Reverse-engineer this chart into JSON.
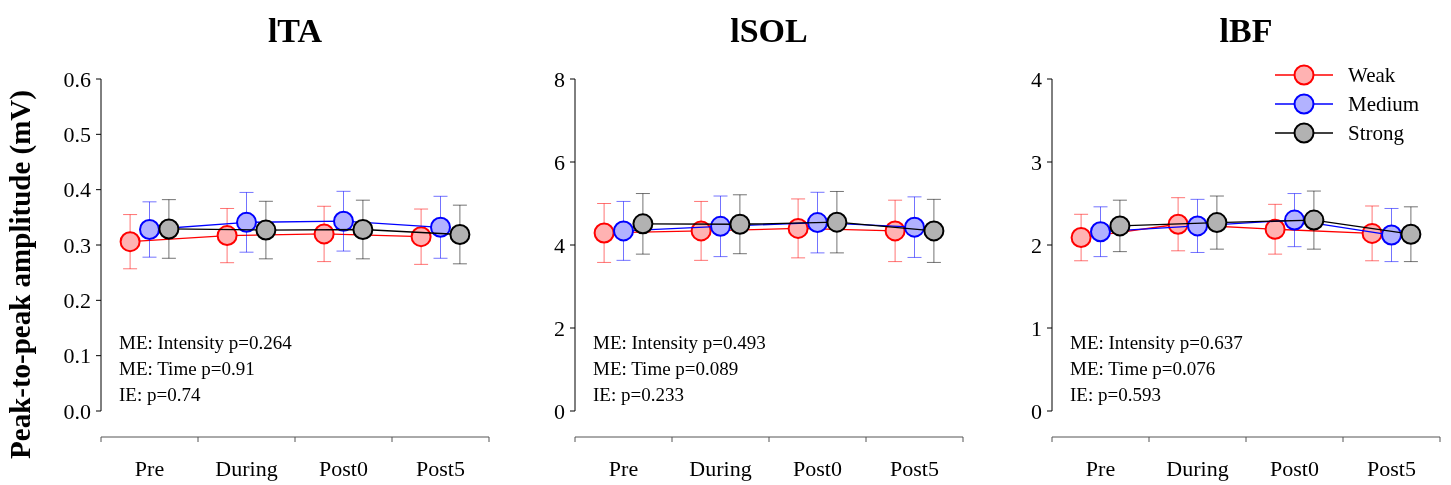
{
  "chart_data": [
    {
      "type": "line",
      "title": "lTA",
      "ylabel": "Peak-to-peak amplitude (mV)",
      "categories": [
        "Pre",
        "During",
        "Post0",
        "Post5"
      ],
      "ylim": [
        0,
        0.6
      ],
      "yticks": [
        {
          "value": 0,
          "label": "0.0"
        },
        0.1,
        0.2,
        0.3,
        0.4,
        0.5,
        0.6
      ],
      "marker": "circle",
      "series": [
        {
          "color": "#ff0000",
          "values": [
            0.306,
            0.317,
            0.32,
            0.315
          ],
          "errors": [
            0.049,
            0.049,
            0.05,
            0.05
          ]
        },
        {
          "color": "#0000ff",
          "values": [
            0.328,
            0.341,
            0.343,
            0.332
          ],
          "errors": [
            0.05,
            0.054,
            0.054,
            0.056
          ]
        },
        {
          "color": "#000000",
          "values": [
            0.329,
            0.327,
            0.328,
            0.319
          ],
          "errors": [
            0.053,
            0.052,
            0.053,
            0.053
          ]
        }
      ],
      "annotations": [
        "ME: Intensity p=0.264",
        "ME: Time p=0.91",
        "IE: p=0.74"
      ]
    },
    {
      "type": "line",
      "title": "lSOL",
      "categories": [
        "Pre",
        "During",
        "Post0",
        "Post5"
      ],
      "ylim": [
        0,
        8
      ],
      "yticks": [
        0,
        2,
        4,
        6,
        8
      ],
      "marker": "circle",
      "series": [
        {
          "color": "#ff0000",
          "values": [
            4.29,
            4.34,
            4.4,
            4.34
          ],
          "errors": [
            0.71,
            0.71,
            0.71,
            0.74
          ]
        },
        {
          "color": "#0000ff",
          "values": [
            4.34,
            4.45,
            4.54,
            4.43
          ],
          "errors": [
            0.71,
            0.73,
            0.73,
            0.73
          ]
        },
        {
          "color": "#000000",
          "values": [
            4.51,
            4.5,
            4.55,
            4.34
          ],
          "errors": [
            0.73,
            0.71,
            0.74,
            0.76
          ]
        }
      ],
      "annotations": [
        "ME: Intensity p=0.493",
        "ME: Time p=0.089",
        "IE: p=0.233"
      ]
    },
    {
      "type": "line",
      "title": "lBF",
      "categories": [
        "Pre",
        "During",
        "Post0",
        "Post5"
      ],
      "ylim": [
        0,
        4
      ],
      "yticks": [
        0,
        1,
        2,
        3,
        4
      ],
      "marker": "circle",
      "legend": "top right",
      "series": [
        {
          "name": "Weak",
          "color": "#ff0000",
          "values": [
            2.09,
            2.25,
            2.19,
            2.14
          ],
          "errors": [
            0.28,
            0.32,
            0.3,
            0.33
          ]
        },
        {
          "name": "Medium",
          "color": "#0000ff",
          "values": [
            2.16,
            2.23,
            2.3,
            2.12
          ],
          "errors": [
            0.3,
            0.32,
            0.32,
            0.32
          ]
        },
        {
          "name": "Strong",
          "color": "#000000",
          "values": [
            2.23,
            2.27,
            2.3,
            2.13
          ],
          "errors": [
            0.31,
            0.32,
            0.35,
            0.33
          ]
        }
      ],
      "annotations": [
        "ME: Intensity p=0.637",
        "ME: Time p=0.076",
        "IE: p=0.593"
      ]
    }
  ]
}
